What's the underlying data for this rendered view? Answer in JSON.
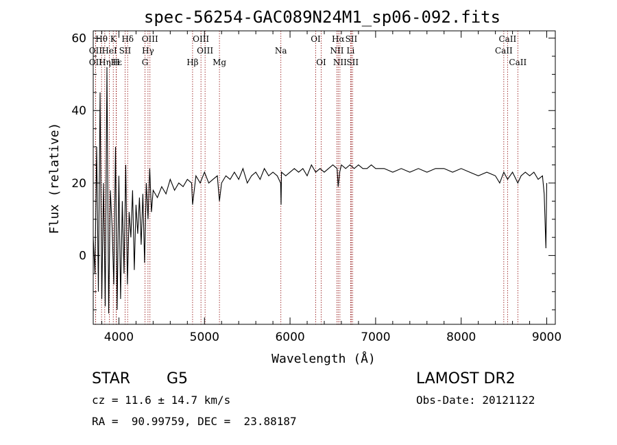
{
  "chart_data": {
    "type": "line",
    "title": "spec-56254-GAC089N24M1_sp06-092.fits",
    "xlabel": "Wavelength (Å)",
    "ylabel": "Flux (relative)",
    "xlim": [
      3700,
      9100
    ],
    "ylim": [
      -19,
      62
    ],
    "x_ticks": [
      4000,
      5000,
      6000,
      7000,
      8000,
      9000
    ],
    "y_ticks": [
      0,
      20,
      40,
      60
    ],
    "grid": false,
    "line_color": "#000000",
    "marker_color": "#8b0000",
    "series": [
      {
        "x": [
          3700,
          3720,
          3740,
          3760,
          3780,
          3800,
          3820,
          3840,
          3860,
          3880,
          3900,
          3920,
          3940,
          3960,
          3980,
          4000,
          4020,
          4040,
          4060,
          4080,
          4100,
          4120,
          4140,
          4160,
          4180,
          4200,
          4220,
          4240,
          4260,
          4280,
          4300,
          4320,
          4340,
          4360,
          4380,
          4400,
          4450,
          4500,
          4550,
          4600,
          4650,
          4700,
          4750,
          4800,
          4850,
          4861,
          4900,
          4950,
          5000,
          5050,
          5100,
          5150,
          5175,
          5200,
          5250,
          5300,
          5350,
          5400,
          5450,
          5500,
          5550,
          5600,
          5650,
          5700,
          5750,
          5800,
          5850,
          5890,
          5895,
          5900,
          5950,
          6000,
          6050,
          6100,
          6150,
          6200,
          6250,
          6300,
          6350,
          6400,
          6450,
          6500,
          6550,
          6563,
          6580,
          6600,
          6650,
          6700,
          6750,
          6800,
          6850,
          6900,
          6950,
          7000,
          7100,
          7200,
          7300,
          7400,
          7500,
          7600,
          7700,
          7800,
          7900,
          8000,
          8100,
          8200,
          8300,
          8400,
          8450,
          8498,
          8542,
          8600,
          8662,
          8700,
          8750,
          8800,
          8850,
          8900,
          8950,
          8970,
          8990,
          9000
        ],
        "y": [
          5,
          -5,
          30,
          -10,
          45,
          -12,
          20,
          -14,
          52,
          -16,
          18,
          8,
          -8,
          30,
          -15,
          22,
          -12,
          15,
          -5,
          25,
          -8,
          12,
          5,
          18,
          -4,
          14,
          6,
          16,
          3,
          17,
          -2,
          20,
          10,
          24,
          12,
          18,
          16,
          19,
          17,
          21,
          18,
          20,
          19,
          21,
          20,
          14,
          22,
          20,
          23,
          20,
          21,
          22,
          15,
          20,
          22,
          21,
          23,
          21,
          24,
          20,
          22,
          23,
          21,
          24,
          22,
          23,
          22,
          20,
          14,
          23,
          22,
          23,
          24,
          23,
          24,
          22,
          25,
          23,
          24,
          23,
          24,
          25,
          24,
          19,
          23,
          25,
          24,
          25,
          24,
          25,
          24,
          24,
          25,
          24,
          24,
          23,
          24,
          23,
          24,
          23,
          24,
          24,
          23,
          24,
          23,
          22,
          23,
          22,
          20,
          23,
          21,
          23,
          20,
          22,
          23,
          22,
          23,
          21,
          22,
          17,
          2,
          20
        ]
      }
    ],
    "spectral_lines": [
      {
        "label": "Hθ",
        "x": 3797,
        "row": 1
      },
      {
        "label": "K",
        "x": 3934,
        "row": 1
      },
      {
        "label": "Hδ",
        "x": 4102,
        "row": 1
      },
      {
        "label": "OIII",
        "x": 4363,
        "row": 1
      },
      {
        "label": "OIII",
        "x": 4959,
        "row": 1
      },
      {
        "label": "OI",
        "x": 6300,
        "row": 1
      },
      {
        "label": "Hα",
        "x": 6563,
        "row": 1
      },
      {
        "label": "SII",
        "x": 6716,
        "row": 1
      },
      {
        "label": "CaII",
        "x": 8542,
        "row": 1
      },
      {
        "label": "OII",
        "x": 3727,
        "row": 2
      },
      {
        "label": "HeI",
        "x": 3889,
        "row": 2
      },
      {
        "label": "SII",
        "x": 4072,
        "row": 2
      },
      {
        "label": "Hγ",
        "x": 4340,
        "row": 2
      },
      {
        "label": "OIII",
        "x": 5007,
        "row": 2
      },
      {
        "label": "Na",
        "x": 5893,
        "row": 2
      },
      {
        "label": "NII",
        "x": 6548,
        "row": 2
      },
      {
        "label": "Li",
        "x": 6708,
        "row": 2
      },
      {
        "label": "CaII",
        "x": 8498,
        "row": 2
      },
      {
        "label": "OII",
        "x": 3727,
        "row": 3
      },
      {
        "label": "Hε",
        "x": 3970,
        "row": 3
      },
      {
        "label": "Hη",
        "x": 3835,
        "row": 3
      },
      {
        "label": "H",
        "x": 3968,
        "row": 3
      },
      {
        "label": "G",
        "x": 4305,
        "row": 3
      },
      {
        "label": "Hβ",
        "x": 4861,
        "row": 3
      },
      {
        "label": "Mg",
        "x": 5175,
        "row": 3
      },
      {
        "label": "OI",
        "x": 6364,
        "row": 3
      },
      {
        "label": "NII",
        "x": 6583,
        "row": 3
      },
      {
        "label": "SII",
        "x": 6731,
        "row": 3
      },
      {
        "label": "CaII",
        "x": 8662,
        "row": 3
      }
    ]
  },
  "info": {
    "classification": "STAR",
    "subclass": "G5",
    "survey": "LAMOST DR2",
    "cz": "cz = 11.6 ± 14.7 km/s",
    "obs_date": "Obs-Date: 20121122",
    "coords": "RA =  90.99759, DEC =  23.88187"
  }
}
